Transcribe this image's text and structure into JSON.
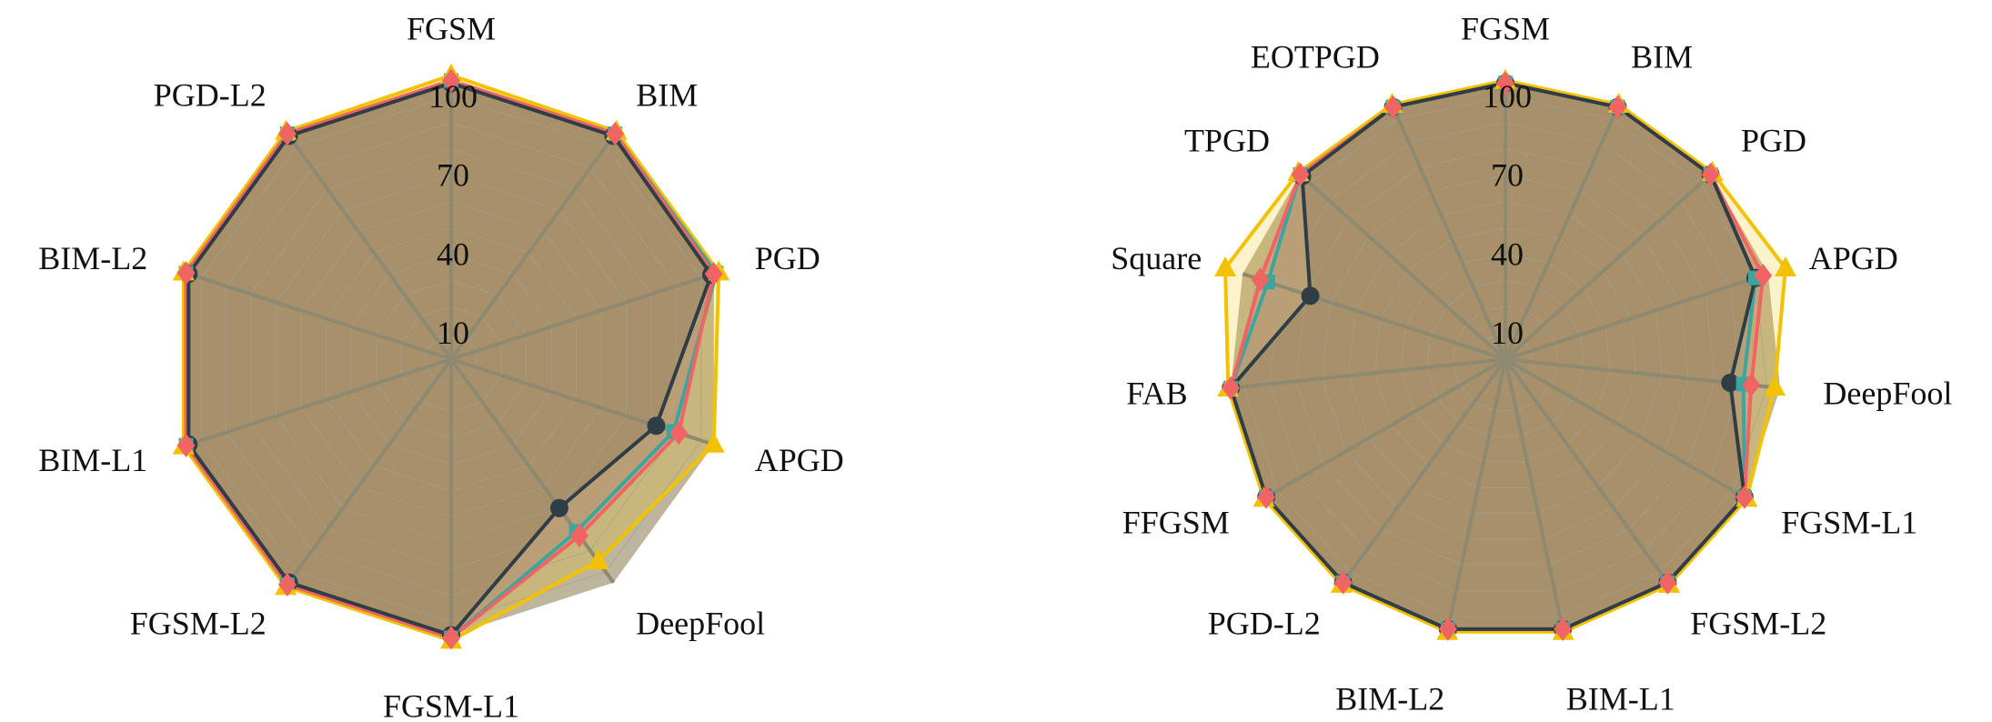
{
  "colors": {
    "background": "#ffffff",
    "grid_ring": "#a49f8e",
    "spoke": "#8e8a72",
    "fill_base": "#bdb59c",
    "series": [
      "#2f3e46",
      "#3aa6a0",
      "#f2c200",
      "#f06464"
    ],
    "series_fill": [
      "rgba(47,62,70,0.30)",
      "rgba(58,166,160,0.30)",
      "rgba(242,194,0,0.20)",
      "rgba(240,100,100,0.25)"
    ]
  },
  "chart_data": [
    {
      "type": "radar",
      "title": "",
      "rmax": 110,
      "ticks": [
        10,
        40,
        70,
        100
      ],
      "tick_labels": [
        "10",
        "40",
        "70",
        "100"
      ],
      "categories": [
        "FGSM",
        "BIM",
        "PGD",
        "APGD",
        "DeepFool",
        "FGSM-L1",
        "FGSM-L2",
        "BIM-L1",
        "BIM-L2",
        "PGD-L2"
      ],
      "series": [
        {
          "marker": "circle",
          "values": [
            105,
            105,
            104,
            82,
            70,
            105,
            105,
            105,
            105,
            105
          ]
        },
        {
          "marker": "square",
          "values": [
            106,
            106,
            106,
            89,
            81,
            106,
            106,
            106,
            106,
            106
          ]
        },
        {
          "marker": "triangle",
          "values": [
            108,
            107,
            107,
            105,
            95,
            107,
            107,
            107,
            107,
            107
          ]
        },
        {
          "marker": "diamond",
          "values": [
            106,
            106,
            105,
            91,
            83,
            106,
            106,
            106,
            106,
            106
          ]
        }
      ]
    },
    {
      "type": "radar",
      "title": "",
      "rmax": 110,
      "ticks": [
        10,
        40,
        70,
        100
      ],
      "tick_labels": [
        "10",
        "40",
        "70",
        "100"
      ],
      "categories": [
        "FGSM",
        "BIM",
        "PGD",
        "APGD",
        "DeepFool",
        "FGSM-L1",
        "FGSM-L2",
        "BIM-L1",
        "BIM-L2",
        "PGD-L2",
        "FFGSM",
        "FAB",
        "Square",
        "TPGD",
        "EOTPGD"
      ],
      "series": [
        {
          "marker": "circle",
          "values": [
            105,
            105,
            105,
            100,
            86,
            105,
            105,
            105,
            105,
            105,
            105,
            105,
            78,
            104,
            105
          ]
        },
        {
          "marker": "square",
          "values": [
            105,
            105,
            105,
            100,
            91,
            105,
            105,
            105,
            105,
            105,
            105,
            105,
            95,
            105,
            105
          ]
        },
        {
          "marker": "triangle",
          "values": [
            106,
            106,
            106,
            112,
            103,
            106,
            106,
            106,
            106,
            106,
            106,
            106,
            112,
            106,
            106
          ]
        },
        {
          "marker": "diamond",
          "values": [
            105,
            105,
            105,
            103,
            94,
            105,
            105,
            105,
            105,
            105,
            105,
            105,
            98,
            105,
            105
          ]
        }
      ]
    }
  ]
}
